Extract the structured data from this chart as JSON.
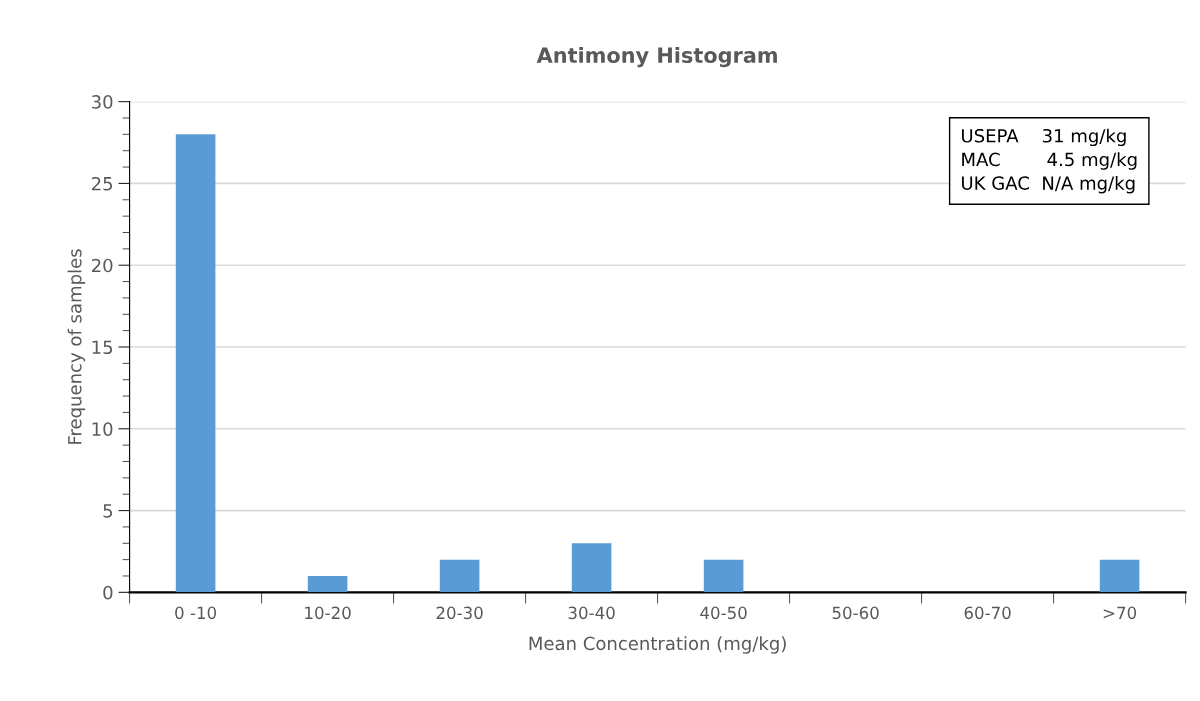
{
  "chart_data": {
    "type": "bar",
    "title": "Antimony Histogram",
    "xlabel": "Mean Concentration (mg/kg)",
    "ylabel": "Frequency of samples",
    "categories": [
      "0 -10",
      "10-20",
      "20-30",
      "30-40",
      "40-50",
      "50-60",
      "60-70",
      ">70"
    ],
    "values": [
      28,
      1,
      2,
      3,
      2,
      0,
      0,
      2
    ],
    "color": "#5b9bd5",
    "ylim": [
      0,
      30
    ],
    "yticks": [
      0,
      5,
      10,
      15,
      20,
      25,
      30
    ],
    "grid": "y",
    "annotations": [
      "USEPA    31 mg/kg",
      "MAC        4.5 mg/kg",
      "UK GAC  N/A mg/kg"
    ]
  }
}
